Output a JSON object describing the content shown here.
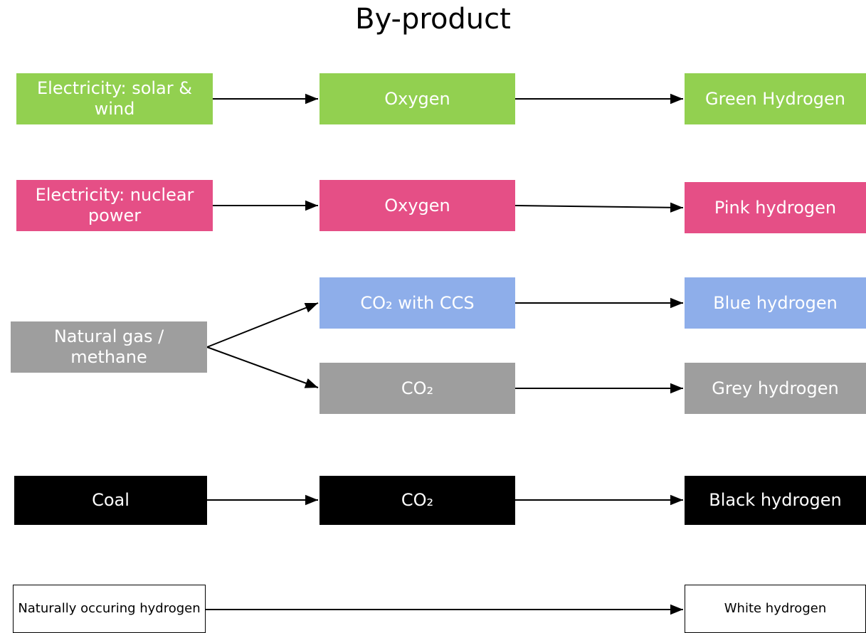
{
  "title": "By-product",
  "nodes": [
    {
      "label": "Electricity: solar & wind"
    },
    {
      "label": "Oxygen"
    },
    {
      "label": "Green Hydrogen"
    },
    {
      "label": "Electricity: nuclear power"
    },
    {
      "label": "Oxygen"
    },
    {
      "label": "Pink hydrogen"
    },
    {
      "label": "Natural gas / methane"
    },
    {
      "label": "CO₂ with CCS"
    },
    {
      "label": "Blue hydrogen"
    },
    {
      "label": "CO₂"
    },
    {
      "label": "Grey hydrogen"
    },
    {
      "label": "Coal"
    },
    {
      "label": "CO₂"
    },
    {
      "label": "Black hydrogen"
    },
    {
      "label": "Naturally occuring hydrogen"
    },
    {
      "label": "White hydrogen"
    }
  ]
}
